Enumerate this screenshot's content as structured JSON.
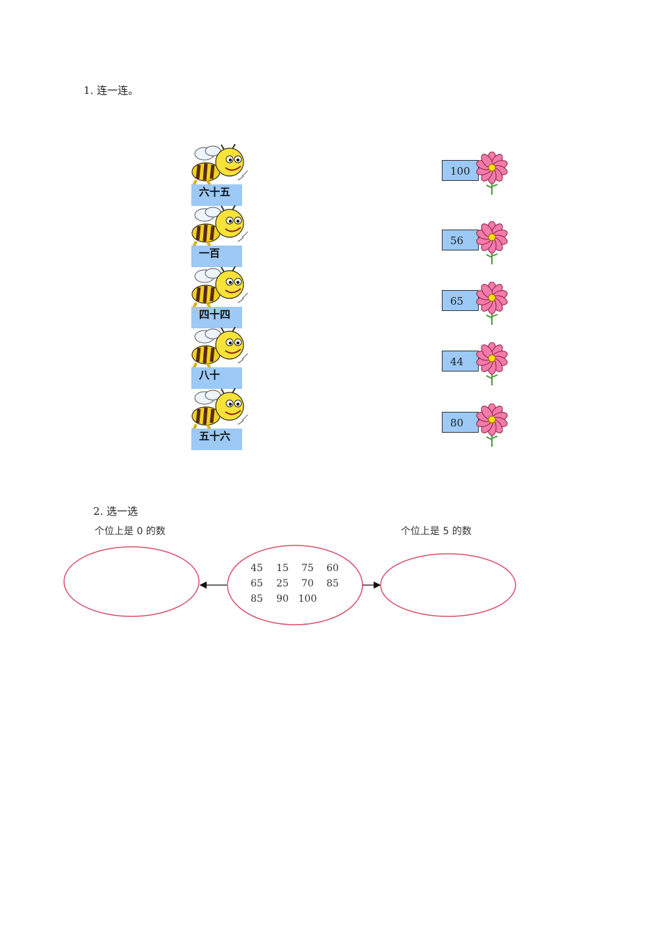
{
  "q1": {
    "title": "1. 连一连。",
    "bees": [
      {
        "label": "六十五"
      },
      {
        "label": "一百"
      },
      {
        "label": "四十四"
      },
      {
        "label": "八十"
      },
      {
        "label": "五十六"
      }
    ],
    "flowers": [
      {
        "number": "100"
      },
      {
        "number": "56"
      },
      {
        "number": "65"
      },
      {
        "number": "44"
      },
      {
        "number": "80"
      }
    ]
  },
  "q2": {
    "title": "2. 选一选",
    "left_label": "个位上是 0 的数",
    "right_label": "个位上是 5 的数",
    "numbers": [
      [
        "45",
        "15",
        "75",
        "60"
      ],
      [
        "65",
        "25",
        "70",
        "85"
      ],
      [
        "85",
        "90",
        "100"
      ]
    ],
    "ellipse_color": "#d9506a"
  }
}
